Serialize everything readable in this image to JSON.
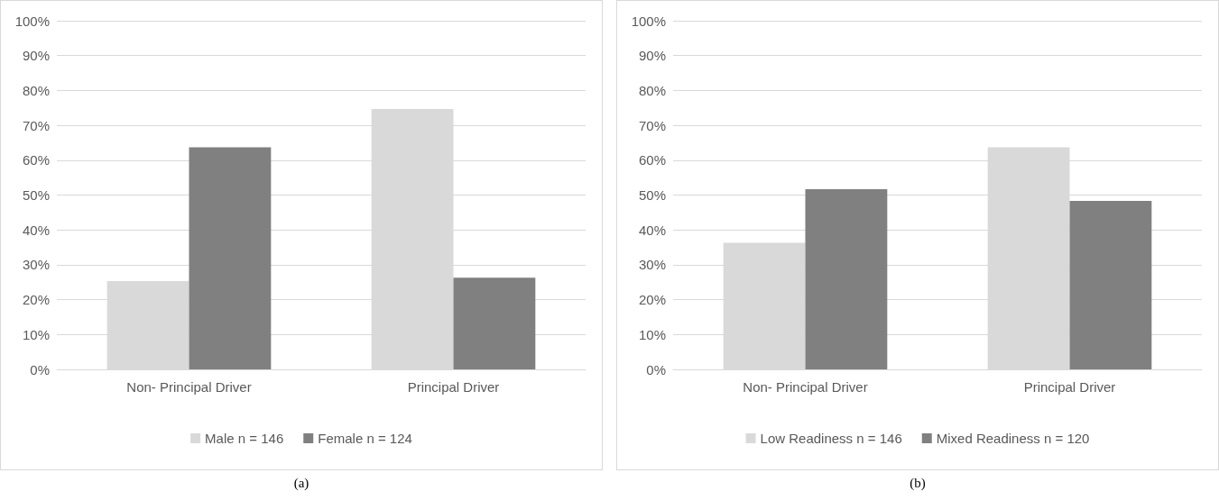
{
  "chart_data": [
    {
      "type": "bar",
      "categories": [
        "Non- Principal Driver",
        "Principal Driver"
      ],
      "series": [
        {
          "name": "Male n = 146",
          "color": "#d9d9d9",
          "values": [
            25.3,
            74.7
          ]
        },
        {
          "name": "Female n = 124",
          "color": "#808080",
          "values": [
            63.7,
            26.3
          ]
        }
      ],
      "ylim": [
        0,
        100
      ],
      "yticks": [
        {
          "value": 0,
          "label": "0%"
        },
        {
          "value": 10,
          "label": "10%"
        },
        {
          "value": 20,
          "label": "20%"
        },
        {
          "value": 30,
          "label": "30%"
        },
        {
          "value": 40,
          "label": "40%"
        },
        {
          "value": 50,
          "label": "50%"
        },
        {
          "value": 60,
          "label": "60%"
        },
        {
          "value": 70,
          "label": "70%"
        },
        {
          "value": 80,
          "label": "80%"
        },
        {
          "value": 90,
          "label": "90%"
        },
        {
          "value": 100,
          "label": "100%"
        }
      ],
      "grid": "y",
      "legend": "bottom",
      "annotations": [
        "(a)"
      ]
    },
    {
      "type": "bar",
      "categories": [
        "Non- Principal Driver",
        "Principal Driver"
      ],
      "series": [
        {
          "name": "Low Readiness n = 146",
          "color": "#d9d9d9",
          "values": [
            36.3,
            63.7
          ]
        },
        {
          "name": "Mixed Readiness n = 120",
          "color": "#808080",
          "values": [
            51.7,
            48.3
          ]
        }
      ],
      "ylim": [
        0,
        100
      ],
      "yticks": [
        {
          "value": 0,
          "label": "0%"
        },
        {
          "value": 10,
          "label": "10%"
        },
        {
          "value": 20,
          "label": "20%"
        },
        {
          "value": 30,
          "label": "30%"
        },
        {
          "value": 40,
          "label": "40%"
        },
        {
          "value": 50,
          "label": "50%"
        },
        {
          "value": 60,
          "label": "60%"
        },
        {
          "value": 70,
          "label": "70%"
        },
        {
          "value": 80,
          "label": "80%"
        },
        {
          "value": 90,
          "label": "90%"
        },
        {
          "value": 100,
          "label": "100%"
        }
      ],
      "grid": "y",
      "legend": "bottom",
      "annotations": [
        "(b)"
      ]
    }
  ]
}
